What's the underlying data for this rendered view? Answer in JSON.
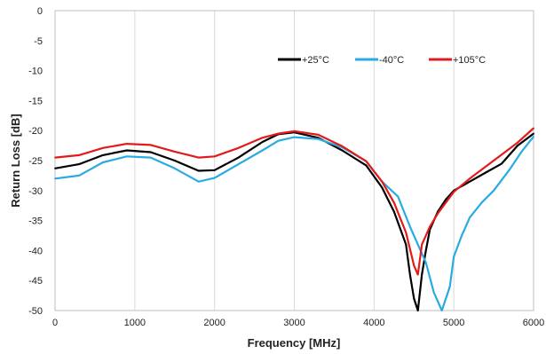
{
  "chart_data": {
    "type": "line",
    "title": "",
    "xlabel": "Frequency [MHz]",
    "ylabel": "Return Loss [dB]",
    "xlim": [
      0,
      6000
    ],
    "ylim": [
      -50,
      0
    ],
    "x_ticks": [
      "0",
      "1000",
      "2000",
      "3000",
      "4000",
      "5000",
      "6000"
    ],
    "y_ticks": [
      "0",
      "-5",
      "-10",
      "-15",
      "-20",
      "-25",
      "-30",
      "-35",
      "-40",
      "-45",
      "-50"
    ],
    "grid": "vertical",
    "legend_position": "top-right",
    "series": [
      {
        "name": "+25°C",
        "color": "#000000",
        "points": [
          [
            0,
            -26.3
          ],
          [
            300,
            -25.6
          ],
          [
            600,
            -24.1
          ],
          [
            900,
            -23.3
          ],
          [
            1200,
            -23.6
          ],
          [
            1500,
            -25.0
          ],
          [
            1800,
            -26.7
          ],
          [
            2000,
            -26.6
          ],
          [
            2300,
            -24.5
          ],
          [
            2600,
            -21.9
          ],
          [
            2800,
            -20.6
          ],
          [
            3000,
            -20.3
          ],
          [
            3300,
            -21.2
          ],
          [
            3600,
            -23.3
          ],
          [
            3900,
            -25.8
          ],
          [
            4100,
            -29.5
          ],
          [
            4250,
            -33.5
          ],
          [
            4400,
            -39.0
          ],
          [
            4450,
            -44.0
          ],
          [
            4500,
            -48.0
          ],
          [
            4550,
            -50.0
          ],
          [
            4600,
            -44.0
          ],
          [
            4650,
            -40.0
          ],
          [
            4700,
            -36.5
          ],
          [
            4800,
            -33.5
          ],
          [
            4900,
            -31.5
          ],
          [
            5000,
            -30.0
          ],
          [
            5200,
            -28.5
          ],
          [
            5400,
            -27.0
          ],
          [
            5600,
            -25.5
          ],
          [
            5800,
            -22.5
          ],
          [
            6000,
            -20.5
          ]
        ]
      },
      {
        "name": "-40°C",
        "color": "#29ABE2",
        "points": [
          [
            0,
            -28.0
          ],
          [
            300,
            -27.5
          ],
          [
            600,
            -25.3
          ],
          [
            900,
            -24.3
          ],
          [
            1200,
            -24.5
          ],
          [
            1500,
            -26.3
          ],
          [
            1800,
            -28.5
          ],
          [
            2000,
            -27.9
          ],
          [
            2300,
            -25.6
          ],
          [
            2600,
            -23.3
          ],
          [
            2800,
            -21.7
          ],
          [
            3000,
            -21.1
          ],
          [
            3300,
            -21.4
          ],
          [
            3600,
            -22.8
          ],
          [
            3900,
            -25.1
          ],
          [
            4100,
            -28.5
          ],
          [
            4300,
            -31.0
          ],
          [
            4450,
            -36.0
          ],
          [
            4550,
            -39.0
          ],
          [
            4650,
            -42.0
          ],
          [
            4750,
            -47.0
          ],
          [
            4850,
            -50.0
          ],
          [
            4950,
            -46.0
          ],
          [
            5000,
            -41.0
          ],
          [
            5100,
            -37.5
          ],
          [
            5200,
            -34.5
          ],
          [
            5350,
            -32.0
          ],
          [
            5500,
            -30.0
          ],
          [
            5700,
            -26.5
          ],
          [
            5850,
            -23.5
          ],
          [
            6000,
            -21.0
          ]
        ]
      },
      {
        "name": "+105°C",
        "color": "#E31A1C",
        "points": [
          [
            0,
            -24.5
          ],
          [
            300,
            -24.1
          ],
          [
            600,
            -22.9
          ],
          [
            900,
            -22.2
          ],
          [
            1200,
            -22.4
          ],
          [
            1500,
            -23.5
          ],
          [
            1800,
            -24.5
          ],
          [
            2000,
            -24.3
          ],
          [
            2300,
            -22.9
          ],
          [
            2600,
            -21.2
          ],
          [
            2800,
            -20.5
          ],
          [
            3000,
            -20.1
          ],
          [
            3300,
            -20.7
          ],
          [
            3600,
            -22.6
          ],
          [
            3900,
            -25.1
          ],
          [
            4100,
            -28.5
          ],
          [
            4250,
            -32.0
          ],
          [
            4400,
            -37.0
          ],
          [
            4500,
            -42.5
          ],
          [
            4550,
            -44.0
          ],
          [
            4600,
            -39.0
          ],
          [
            4700,
            -36.0
          ],
          [
            4800,
            -33.8
          ],
          [
            4900,
            -32.0
          ],
          [
            5000,
            -30.2
          ],
          [
            5200,
            -28.0
          ],
          [
            5400,
            -26.0
          ],
          [
            5600,
            -24.0
          ],
          [
            5800,
            -22.0
          ],
          [
            6000,
            -19.6
          ]
        ]
      }
    ]
  }
}
